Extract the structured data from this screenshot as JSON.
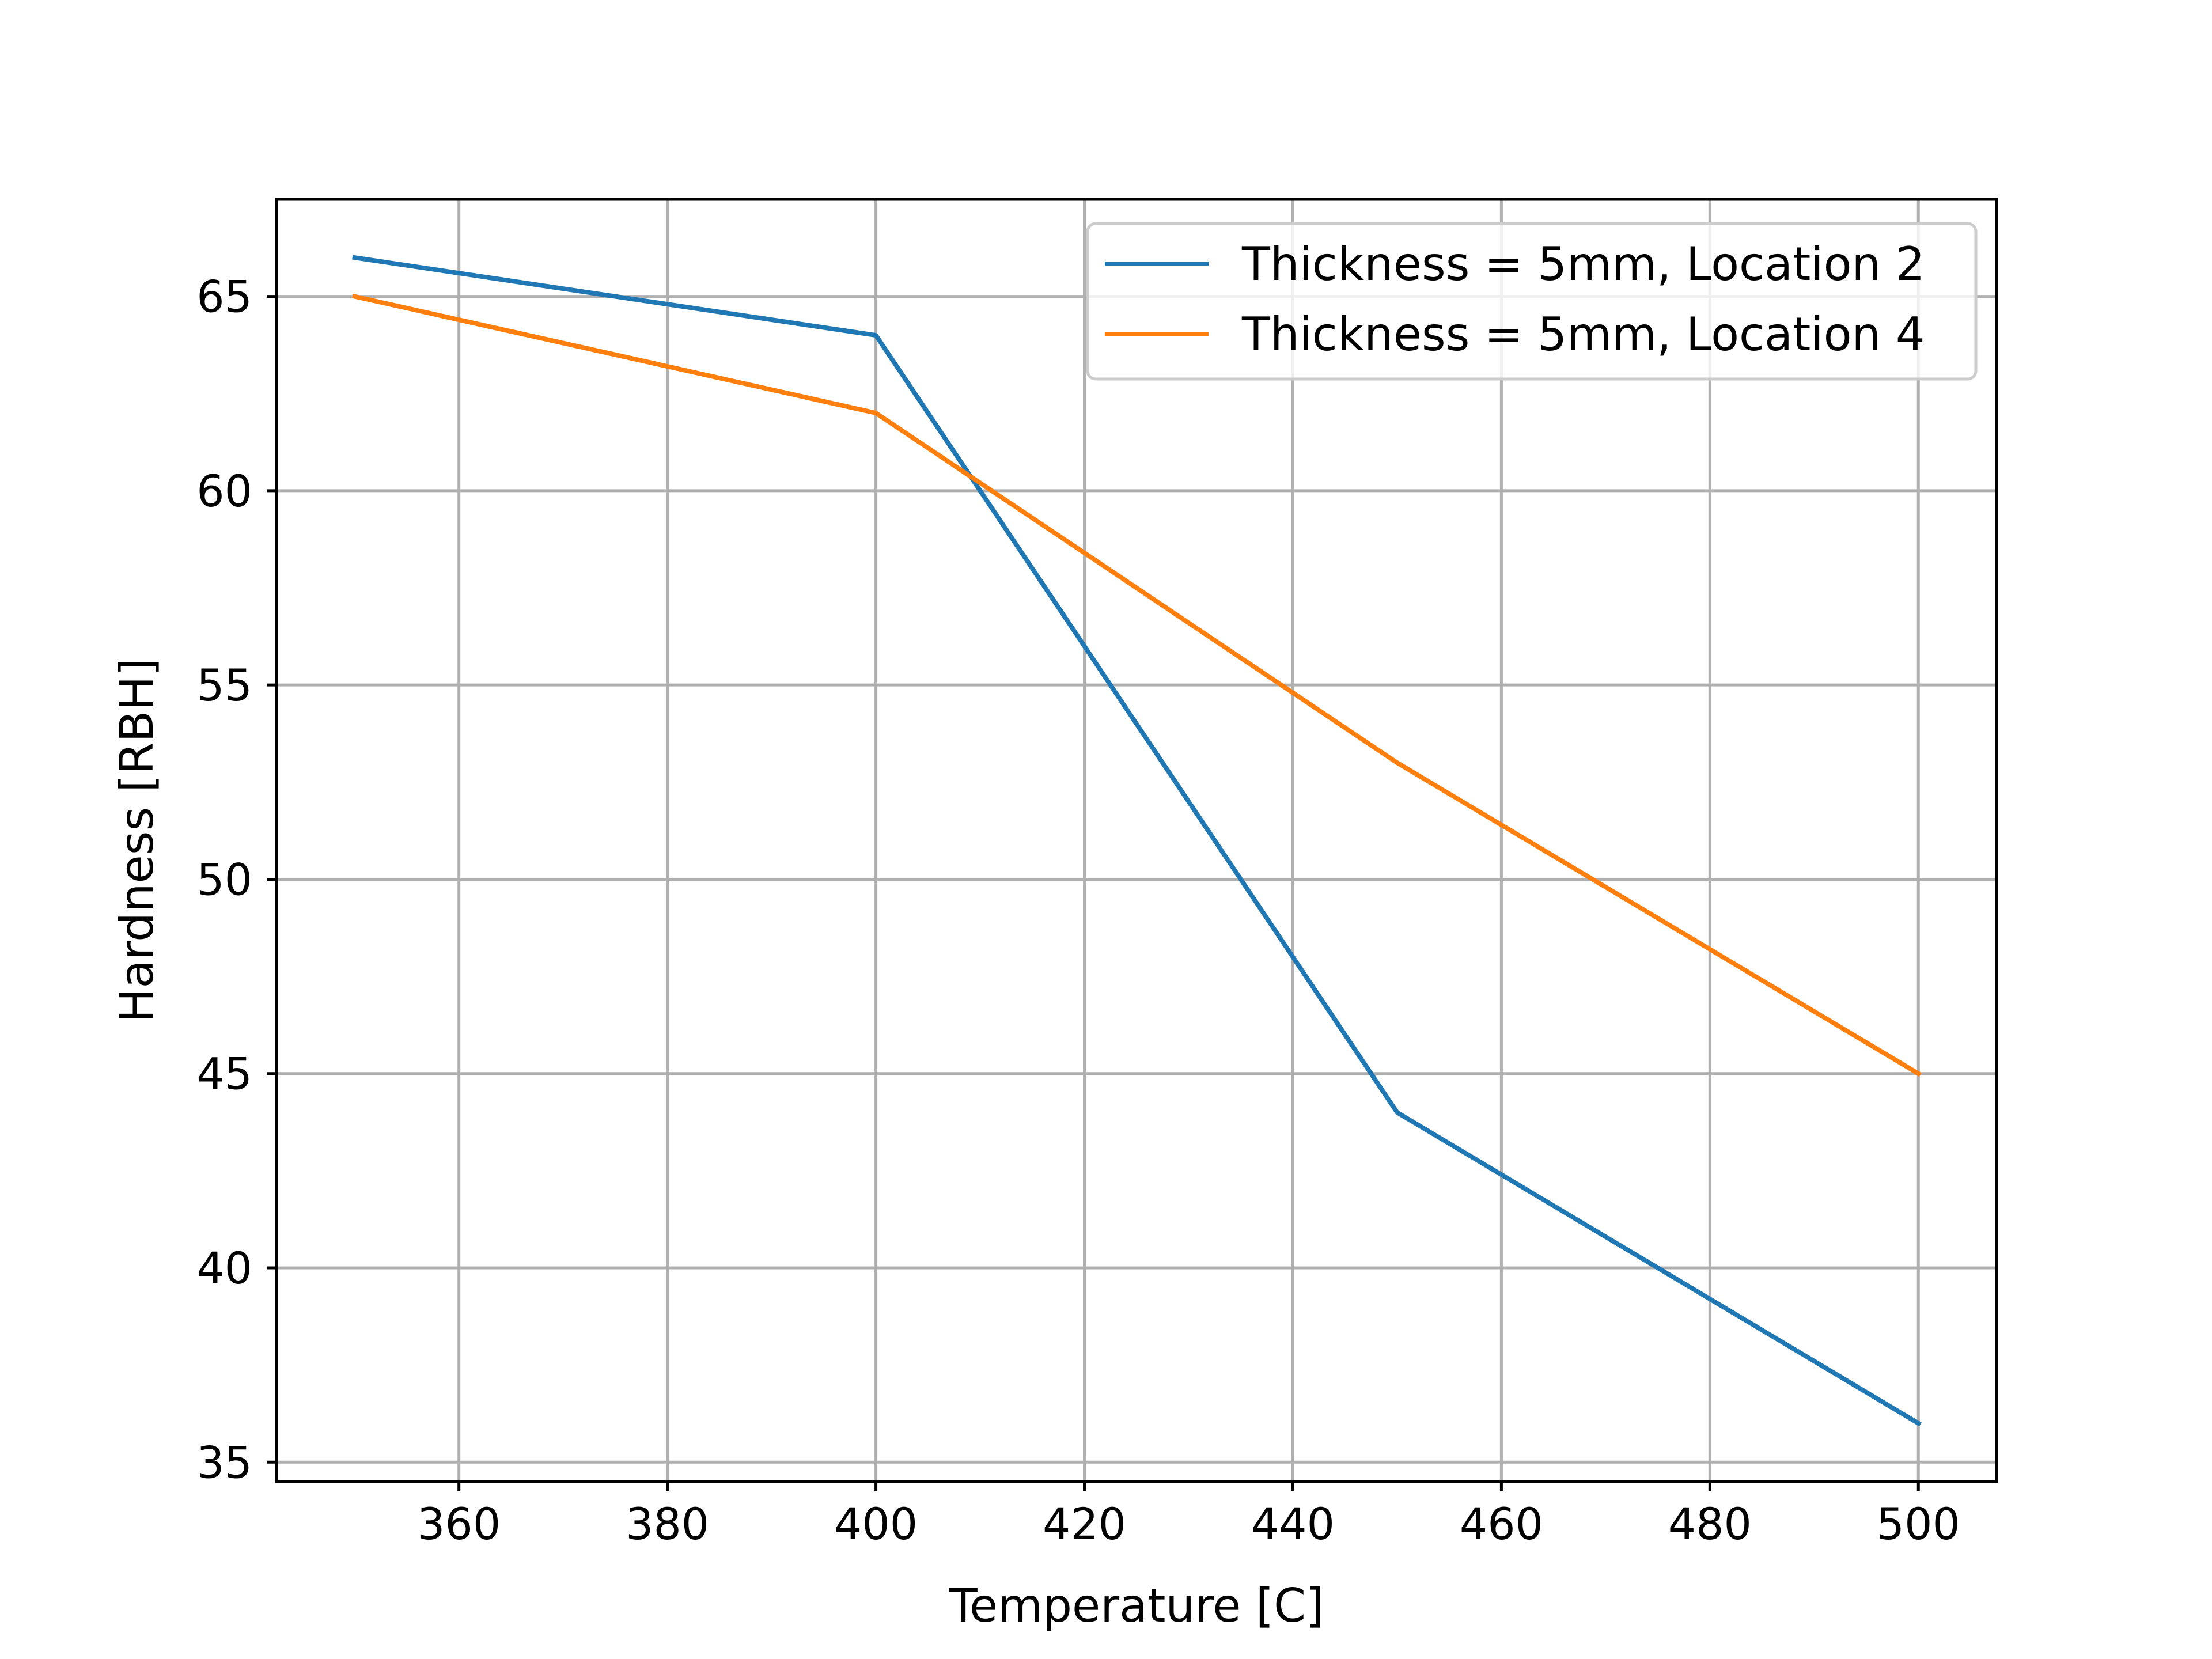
{
  "chart_data": {
    "type": "line",
    "title": "",
    "xlabel": "Temperature [C]",
    "ylabel": "Hardness [RBH]",
    "xlim": [
      342.5,
      507.5
    ],
    "ylim": [
      34.5,
      67.5
    ],
    "xticks": [
      360,
      380,
      400,
      420,
      440,
      460,
      480,
      500
    ],
    "yticks": [
      35,
      40,
      45,
      50,
      55,
      60,
      65
    ],
    "grid": true,
    "legend_position": "top-right",
    "x": [
      350,
      400,
      450,
      500
    ],
    "series": [
      {
        "name": "Thickness = 5mm, Location 2",
        "color": "#1f77b4",
        "values": [
          66,
          64,
          44,
          36
        ]
      },
      {
        "name": "Thickness = 5mm, Location 4",
        "color": "#ff7f0e",
        "values": [
          65,
          62,
          53,
          45
        ]
      }
    ]
  }
}
